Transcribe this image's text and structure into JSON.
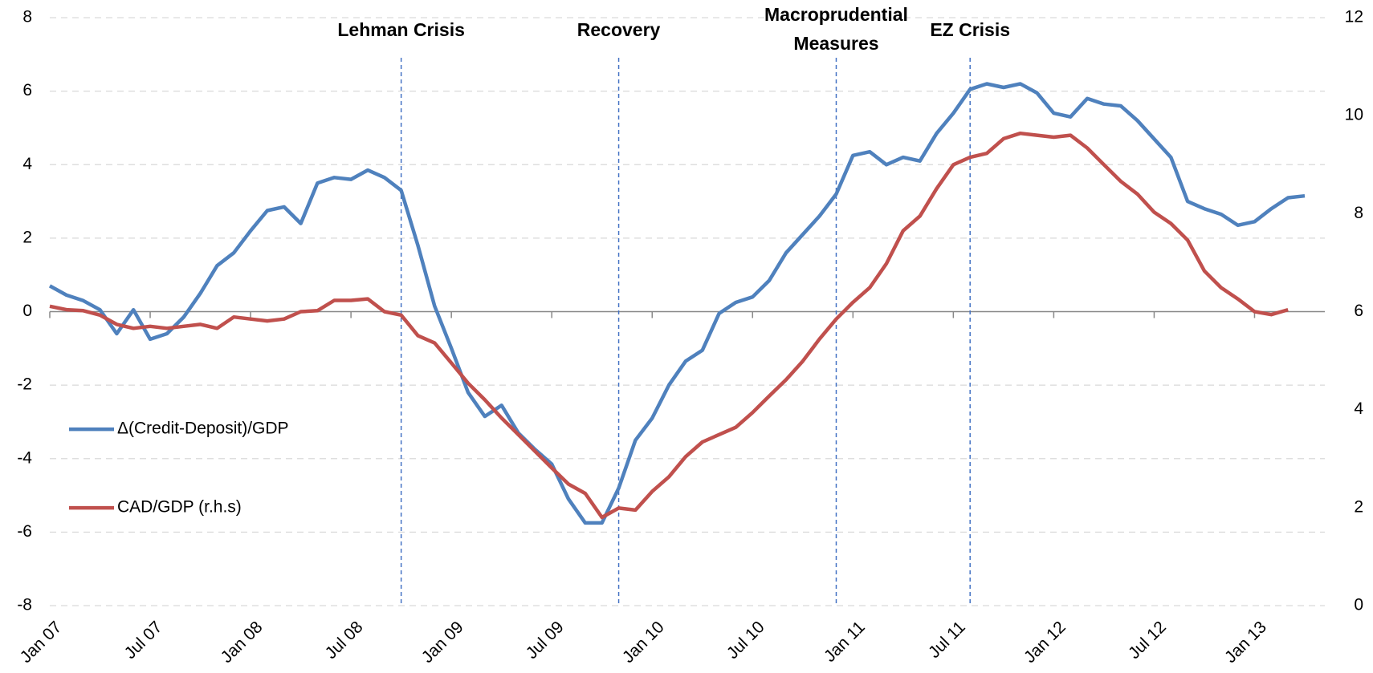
{
  "chart_data": {
    "type": "line",
    "categories": [
      "Jan 07",
      null,
      null,
      null,
      null,
      null,
      "Jul 07",
      null,
      null,
      null,
      null,
      null,
      "Jan 08",
      null,
      null,
      null,
      null,
      null,
      "Jul 08",
      null,
      null,
      null,
      null,
      null,
      "Jan 09",
      null,
      null,
      null,
      null,
      null,
      "Jul 09",
      null,
      null,
      null,
      null,
      null,
      "Jan 10",
      null,
      null,
      null,
      null,
      null,
      "Jul 10",
      null,
      null,
      null,
      null,
      null,
      "Jan 11",
      null,
      null,
      null,
      null,
      null,
      "Jul 11",
      null,
      null,
      null,
      null,
      null,
      "Jan 12",
      null,
      null,
      null,
      null,
      null,
      "Jul 12",
      null,
      null,
      null,
      null,
      null,
      "Jan 13",
      null,
      null,
      null
    ],
    "series": [
      {
        "name": "Δ(Credit-Deposit)/GDP",
        "color": "#4f81bd",
        "values": [
          0.7,
          0.45,
          0.3,
          0.05,
          -0.6,
          0.05,
          -0.75,
          -0.6,
          -0.15,
          0.5,
          1.25,
          1.6,
          2.2,
          2.75,
          2.85,
          2.4,
          3.5,
          3.65,
          3.6,
          3.85,
          3.65,
          3.3,
          1.8,
          0.15,
          -1.0,
          -2.2,
          -2.85,
          -2.55,
          -3.3,
          -3.75,
          -4.15,
          -5.1,
          -5.75,
          -5.75,
          -4.8,
          -3.5,
          -2.9,
          -2.0,
          -1.35,
          -1.05,
          -0.05,
          0.25,
          0.4,
          0.85,
          1.6,
          2.1,
          2.6,
          3.2,
          4.25,
          4.35,
          4.0,
          4.2,
          4.1,
          4.85,
          5.4,
          6.05,
          6.2,
          6.1,
          6.2,
          5.95,
          5.4,
          5.3,
          5.8,
          5.65,
          5.6,
          5.2,
          4.7,
          4.2,
          3.0,
          2.8,
          2.65,
          2.35,
          2.45,
          2.8,
          3.1,
          3.15
        ]
      },
      {
        "name": "CAD/GDP (r.h.s)",
        "color": "#c0504d",
        "axis": "y2",
        "values": [
          6.11,
          6.04,
          6.02,
          5.93,
          5.74,
          5.66,
          5.7,
          5.66,
          5.7,
          5.74,
          5.66,
          5.89,
          5.85,
          5.81,
          5.85,
          6.0,
          6.02,
          6.23,
          6.23,
          6.26,
          6.0,
          5.93,
          5.51,
          5.36,
          4.95,
          4.54,
          4.2,
          3.83,
          3.49,
          3.15,
          2.81,
          2.48,
          2.29,
          1.8,
          1.99,
          1.95,
          2.33,
          2.63,
          3.04,
          3.34,
          3.49,
          3.64,
          3.94,
          4.28,
          4.61,
          4.99,
          5.44,
          5.85,
          6.19,
          6.49,
          6.98,
          7.65,
          7.95,
          8.51,
          9.0,
          9.15,
          9.23,
          9.53,
          9.64,
          9.6,
          9.56,
          9.6,
          9.34,
          9.0,
          8.66,
          8.4,
          8.03,
          7.8,
          7.46,
          6.83,
          6.49,
          6.26,
          6.0,
          5.94,
          6.04,
          null
        ]
      }
    ],
    "ylim": [
      -8,
      8
    ],
    "yticks": [
      -8,
      -6,
      -4,
      -2,
      0,
      2,
      4,
      6,
      8
    ],
    "y2lim": [
      0,
      12
    ],
    "y2ticks": [
      0,
      2,
      4,
      6,
      8,
      10,
      12
    ],
    "grid": true,
    "legend": "left",
    "annotations": [
      {
        "lines": [
          "Lehman Crisis"
        ],
        "at": 21
      },
      {
        "lines": [
          "Recovery"
        ],
        "at": 34
      },
      {
        "lines": [
          "Macroprudential",
          "Measures"
        ],
        "at": 47
      },
      {
        "lines": [
          "EZ Crisis"
        ],
        "at": 55
      }
    ]
  }
}
